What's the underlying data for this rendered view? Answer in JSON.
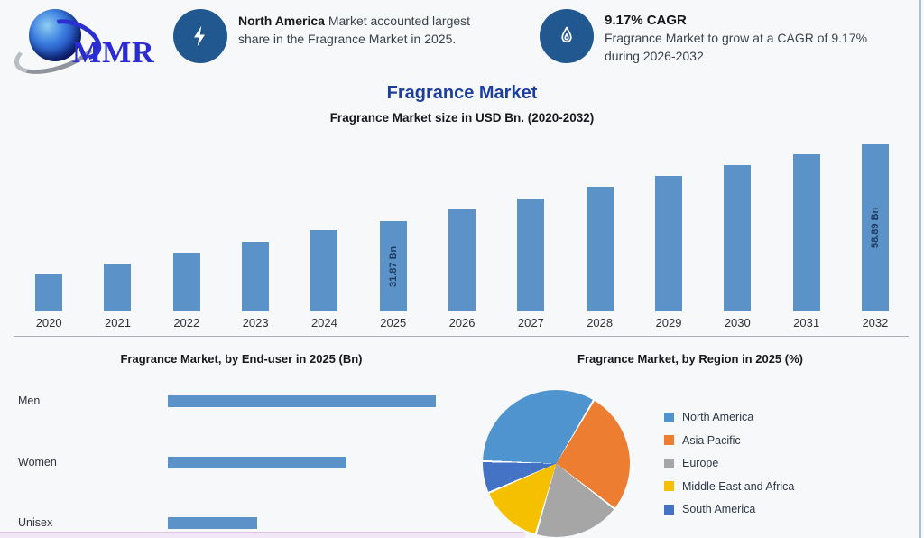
{
  "page": {
    "background": "#f7f8fa",
    "right_border_color": "#a9c0dc",
    "bottom_strip_color": "#f2e7f7"
  },
  "logo": {
    "text": "MMR",
    "text_color": "#2b2bd6"
  },
  "callouts": [
    {
      "icon": "lightning-bolt",
      "circle_color": "#20588f",
      "line1_bold": "North America",
      "line1_rest": " Market accounted largest",
      "line2": "share in the Fragrance Market in 2025."
    },
    {
      "icon": "flame",
      "circle_color": "#20588f",
      "title": "9.17% CAGR",
      "line1": "Fragrance Market to grow at a CAGR of 9.17%",
      "line2": "during 2026-2032"
    }
  ],
  "header": {
    "title": "Fragrance Market",
    "subtitle": "Fragrance Market size in USD Bn. (2020-2032)"
  },
  "chart_data": [
    {
      "type": "bar",
      "title": "Fragrance Market size in USD Bn. (2020-2032)",
      "categories": [
        "2020",
        "2021",
        "2022",
        "2023",
        "2024",
        "2025",
        "2026",
        "2027",
        "2028",
        "2029",
        "2030",
        "2031",
        "2032"
      ],
      "values": [
        13.0,
        16.9,
        20.6,
        24.5,
        28.5,
        31.87,
        35.9,
        39.8,
        43.8,
        47.7,
        51.5,
        55.3,
        58.89
      ],
      "labeled_points": {
        "2025": "31.87 Bn",
        "2032": "58.89 Bn"
      },
      "bar_color": "#5b93c8",
      "data_label_color": "#1e3a5f",
      "ylim": [
        0,
        60
      ],
      "grid": false,
      "legend_position": "none"
    },
    {
      "type": "bar",
      "orientation": "horizontal",
      "title": "Fragrance Market, by End-user in 2025 (Bn)",
      "categories": [
        "Men",
        "Women",
        "Unisex"
      ],
      "values": [
        3,
        2,
        1
      ],
      "value_scale": "relative (no axis shown)",
      "bar_color": "#5b93c8",
      "grid": false,
      "legend_position": "none"
    },
    {
      "type": "pie",
      "title": "Fragrance Market, by Region in 2025 (%)",
      "labels": [
        "North America",
        "Asia Pacific",
        "Europe",
        "Middle East and Africa",
        "South America"
      ],
      "values": [
        33,
        27,
        19,
        14,
        7
      ],
      "colors": [
        "#4f94ce",
        "#ed7d31",
        "#a6a6a6",
        "#f5c000",
        "#4472c4"
      ],
      "start_angle_deg": -89,
      "legend_position": "right"
    }
  ]
}
